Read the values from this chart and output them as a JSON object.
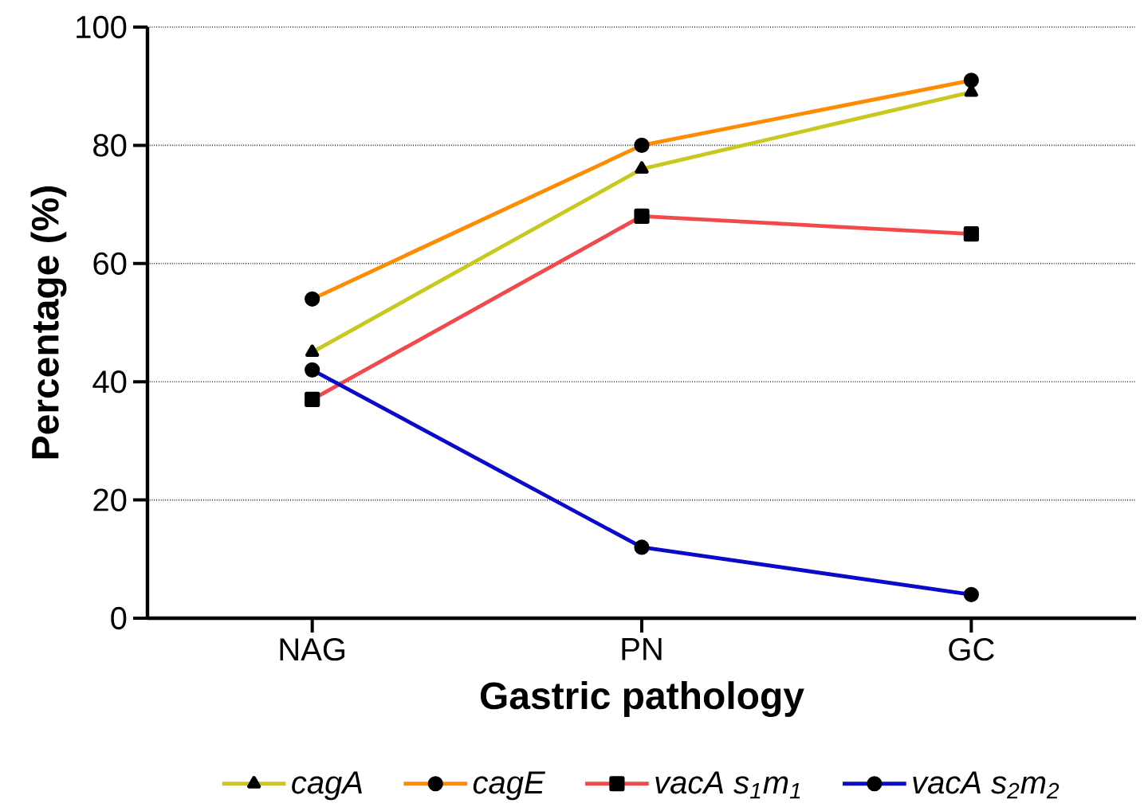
{
  "chart_data": {
    "type": "line",
    "xlabel": "Gastric pathology",
    "ylabel": "Percentage (%)",
    "categories": [
      "NAG",
      "PN",
      "GC"
    ],
    "ylim": [
      0,
      100
    ],
    "yticks": [
      0,
      20,
      40,
      60,
      80,
      100
    ],
    "grid": "y",
    "legend": "bottom",
    "line_style": "solid",
    "series": [
      {
        "name": "cagA",
        "color": "#c8c81e",
        "marker": "triangle",
        "values": [
          45,
          76,
          89
        ]
      },
      {
        "name": "cagE",
        "color": "#ff8c00",
        "marker": "circle",
        "values": [
          54,
          80,
          91
        ]
      },
      {
        "name": "vacA s$_{1}$m$_{1}$",
        "color": "#f24a4a",
        "marker": "square",
        "values": [
          37,
          68,
          65
        ]
      },
      {
        "name": "vacA s$_{2}$m$_{2}$",
        "color": "#0a0ac8",
        "marker": "circle",
        "values": [
          42,
          12,
          4
        ]
      }
    ]
  }
}
